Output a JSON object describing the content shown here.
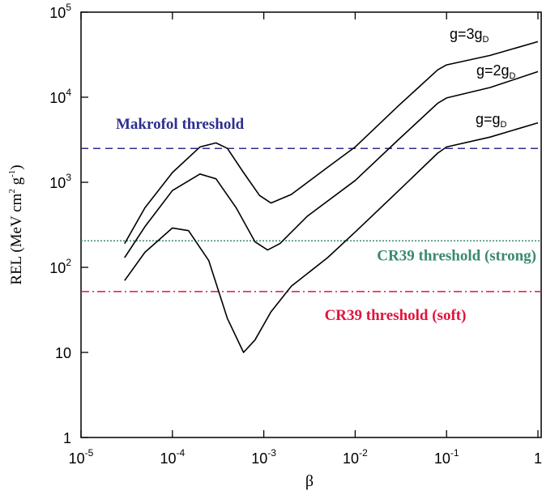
{
  "chart_data": {
    "type": "line",
    "log_x": true,
    "log_y": true,
    "xlabel": "β",
    "ylabel_parts": [
      {
        "text": "REL (MeV cm"
      },
      {
        "sup": "2"
      },
      {
        "text": " g"
      },
      {
        "sup": "-1"
      },
      {
        "text": ")"
      }
    ],
    "xlim": [
      1e-05,
      1
    ],
    "ylim": [
      1,
      100000
    ],
    "xticks": [
      {
        "value": 1e-05,
        "label": "10",
        "exponent": "-5"
      },
      {
        "value": 0.0001,
        "label": "10",
        "exponent": "-4"
      },
      {
        "value": 0.001,
        "label": "10",
        "exponent": "-3"
      },
      {
        "value": 0.01,
        "label": "10",
        "exponent": "-2"
      },
      {
        "value": 0.1,
        "label": "10",
        "exponent": "-1"
      },
      1
    ],
    "yticks": [
      1,
      10,
      {
        "value": 100,
        "label": "10",
        "exponent": "2"
      },
      {
        "value": 1000,
        "label": "10",
        "exponent": "3"
      },
      {
        "value": 10000,
        "label": "10",
        "exponent": "4"
      },
      {
        "value": 100000,
        "label": "10",
        "exponent": "5"
      }
    ],
    "series": [
      {
        "name": "g=3g",
        "name_subscript": "D",
        "color": "#000000",
        "x": [
          3e-05,
          5e-05,
          0.0001,
          0.0002,
          0.0003,
          0.0004,
          0.0006,
          0.0009,
          0.0012,
          0.002,
          0.005,
          0.01,
          0.03,
          0.08,
          0.1,
          0.3,
          1
        ],
        "values": [
          190,
          500,
          1300,
          2600,
          2900,
          2500,
          1300,
          700,
          570,
          720,
          1500,
          2600,
          8000,
          21000,
          24000,
          31000,
          45000
        ]
      },
      {
        "name": "g=2g",
        "name_subscript": "D",
        "color": "#000000",
        "x": [
          3e-05,
          5e-05,
          0.0001,
          0.0002,
          0.0003,
          0.0005,
          0.0008,
          0.0011,
          0.0015,
          0.003,
          0.01,
          0.03,
          0.08,
          0.1,
          0.3,
          1
        ],
        "values": [
          130,
          300,
          800,
          1250,
          1100,
          500,
          200,
          160,
          190,
          400,
          1050,
          3200,
          8500,
          9800,
          13000,
          20000
        ]
      },
      {
        "name": "g=g",
        "name_subscript": "D",
        "color": "#000000",
        "x": [
          3e-05,
          5e-05,
          0.0001,
          0.00015,
          0.00025,
          0.0004,
          0.0006,
          0.0008,
          0.0012,
          0.002,
          0.005,
          0.01,
          0.03,
          0.08,
          0.1,
          0.3,
          1
        ],
        "values": [
          70,
          150,
          290,
          270,
          120,
          25,
          10,
          14,
          30,
          60,
          130,
          260,
          800,
          2200,
          2600,
          3400,
          5000
        ]
      }
    ],
    "thresholds": [
      {
        "label": "Makrofol threshold",
        "value": 2500,
        "color": "#2e2e8f",
        "style": "dashed"
      },
      {
        "label": "CR39 threshold (strong)",
        "value": 205,
        "color": "#3a8a6e",
        "style": "dotted"
      },
      {
        "label": "CR39 threshold (soft)",
        "value": 52,
        "color": "#e0143c",
        "style": "dashdot"
      }
    ]
  }
}
